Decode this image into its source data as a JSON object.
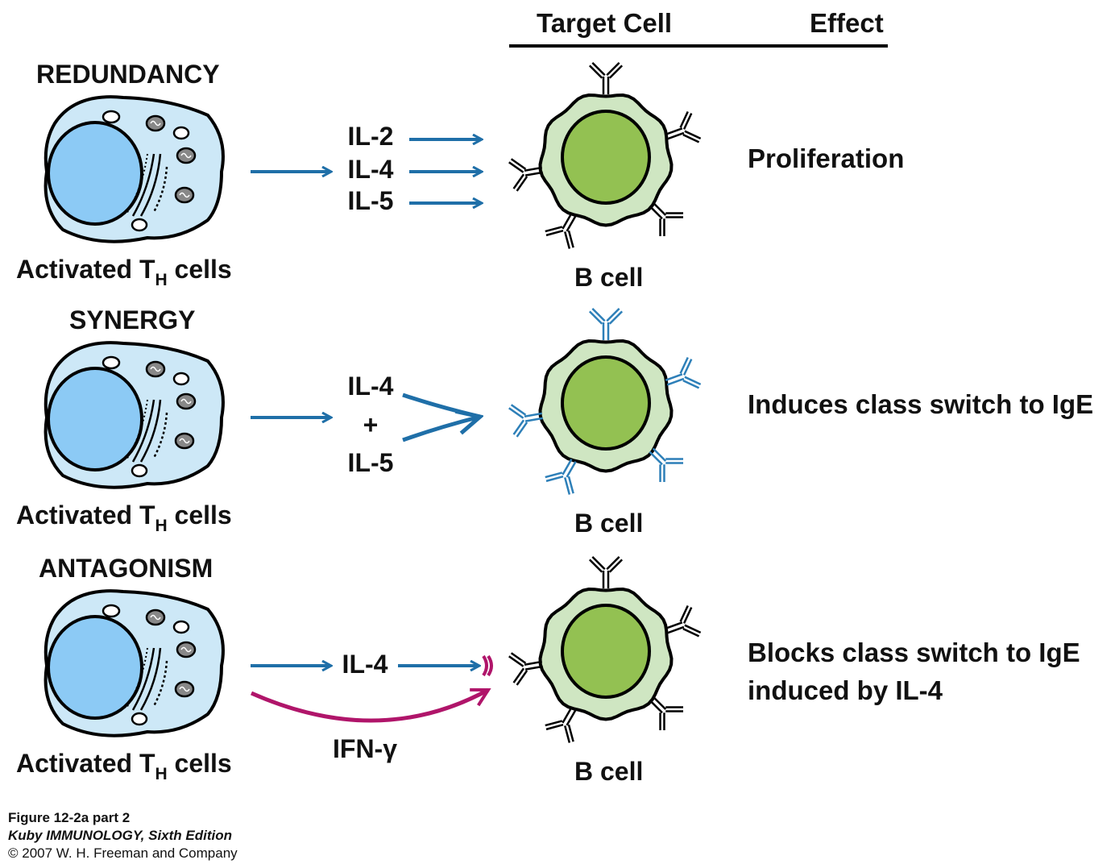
{
  "header": {
    "target_cell": "Target Cell",
    "effect": "Effect"
  },
  "panels": [
    {
      "title": "REDUNDANCY",
      "source_label": "Activated T",
      "source_sub": "H",
      "source_suffix": " cells",
      "cytokines": [
        "IL-2",
        "IL-4",
        "IL-5"
      ],
      "target_label": "B cell",
      "effect": [
        "Proliferation"
      ]
    },
    {
      "title": "SYNERGY",
      "source_label": "Activated T",
      "source_sub": "H",
      "source_suffix": " cells",
      "cytokines": [
        "IL-4",
        "+",
        "IL-5"
      ],
      "target_label": "B cell",
      "effect": [
        "Induces class switch to IgE"
      ]
    },
    {
      "title": "ANTAGONISM",
      "source_label": "Activated T",
      "source_sub": "H",
      "source_suffix": " cells",
      "cytokines": [
        "IL-4",
        "IFN-γ"
      ],
      "target_label": "B cell",
      "effect": [
        "Blocks class switch to IgE",
        "induced by IL-4"
      ]
    }
  ],
  "caption": {
    "figure": "Figure 12-2a part 2",
    "book": "Kuby IMMUNOLOGY, Sixth Edition",
    "copyright": "© 2007 W. H. Freeman and Company"
  },
  "colors": {
    "arrow_blue": "#1f6fa8",
    "arrow_magenta": "#b0156a",
    "th_cytoplasm": "#cde8f7",
    "th_nucleus": "#8ccaf5",
    "b_cytoplasm": "#cfe6c2",
    "b_nucleus": "#93c152",
    "antibody_blue": "#2d7fb8"
  },
  "icons": [
    "th-cell-icon",
    "b-cell-icon",
    "antibody-icon",
    "receptor-block-icon"
  ]
}
